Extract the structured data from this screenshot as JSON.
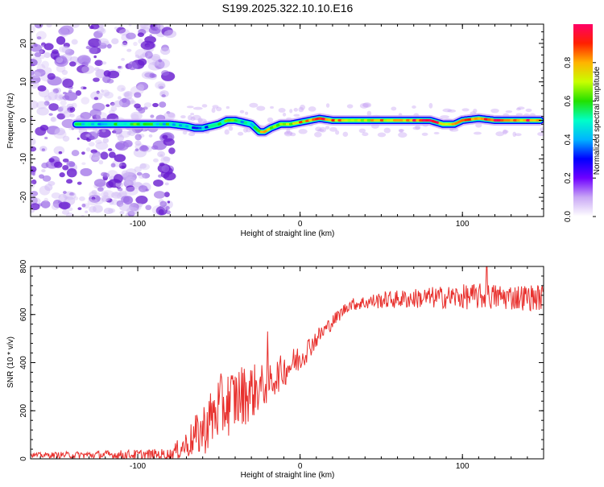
{
  "title": "S199.2025.322.10.10.E16",
  "colors": {
    "axis": "#000000",
    "noise": "#7a2fd6",
    "snr_line": "#e8302d",
    "colorbar": [
      "#ffffff",
      "#c9a8f5",
      "#6f00ff",
      "#0000ff",
      "#00b4ff",
      "#00ffc8",
      "#22e000",
      "#c8ff00",
      "#ffb400",
      "#ff2000",
      "#ff0066"
    ]
  },
  "chart_data": [
    {
      "type": "heatmap",
      "name": "spectrogram",
      "xlabel": "Height of straight line (km)",
      "ylabel": "Frequency (Hz)",
      "xlim": [
        -166,
        150
      ],
      "ylim": [
        -25,
        25
      ],
      "xticks": [
        -100,
        0,
        100
      ],
      "yticks": [
        -20,
        -10,
        0,
        10,
        20
      ],
      "noise_region_x": [
        -166,
        -80
      ],
      "ridge": {
        "x": [
          -138,
          -100,
          -80,
          -70,
          -65,
          -60,
          -55,
          -50,
          -45,
          -40,
          -35,
          -30,
          -25,
          -22,
          -18,
          -12,
          -6,
          0,
          6,
          12,
          20,
          40,
          60,
          80,
          88,
          95,
          100,
          110,
          120,
          135,
          148
        ],
        "freq": [
          -1,
          -1,
          -1,
          -1.5,
          -2,
          -2,
          -1.5,
          -1,
          0,
          0,
          -0.5,
          -1,
          -3,
          -3,
          -2,
          -1,
          -1,
          -0.5,
          0,
          0.5,
          0,
          0,
          0,
          0,
          -1,
          -1,
          0,
          0.5,
          0,
          0,
          0
        ],
        "amp": [
          0.45,
          0.55,
          0.5,
          0.45,
          0.35,
          0.4,
          0.45,
          0.55,
          0.6,
          0.55,
          0.45,
          0.5,
          0.7,
          0.75,
          0.65,
          0.7,
          0.75,
          0.8,
          0.75,
          0.95,
          0.8,
          0.75,
          0.8,
          0.95,
          0.8,
          0.7,
          0.85,
          0.9,
          0.95,
          0.85,
          0.9
        ]
      },
      "colorbar": {
        "label": "Normalized spectral amplitude",
        "range": [
          0,
          1
        ],
        "ticks": [
          0,
          0.2,
          0.4,
          0.6,
          0.8
        ],
        "tick_labels": [
          "0.0",
          "0.2",
          "0.4",
          "0.6",
          "0.8"
        ]
      }
    },
    {
      "type": "line",
      "name": "snr",
      "xlabel": "Height of straight line (km)",
      "ylabel": "SNR (10 * v/v)",
      "xlim": [
        -166,
        150
      ],
      "ylim": [
        0,
        800
      ],
      "xticks": [
        -100,
        0,
        100
      ],
      "yticks": [
        0,
        200,
        400,
        600,
        800
      ],
      "trend": {
        "x": [
          -166,
          -80,
          -70,
          -60,
          -50,
          -40,
          -30,
          -20,
          -10,
          0,
          10,
          20,
          30,
          50,
          80,
          110,
          150
        ],
        "y": [
          15,
          18,
          60,
          120,
          210,
          250,
          280,
          310,
          370,
          420,
          500,
          570,
          640,
          660,
          670,
          675,
          670
        ]
      },
      "noise_level": [
        10,
        25,
        60,
        110,
        140,
        140,
        120,
        80,
        70,
        60,
        40,
        30,
        25,
        35,
        45,
        55,
        55
      ],
      "peaks": [
        {
          "x": -20,
          "y": 530
        },
        {
          "x": 115,
          "y": 800
        }
      ]
    }
  ]
}
